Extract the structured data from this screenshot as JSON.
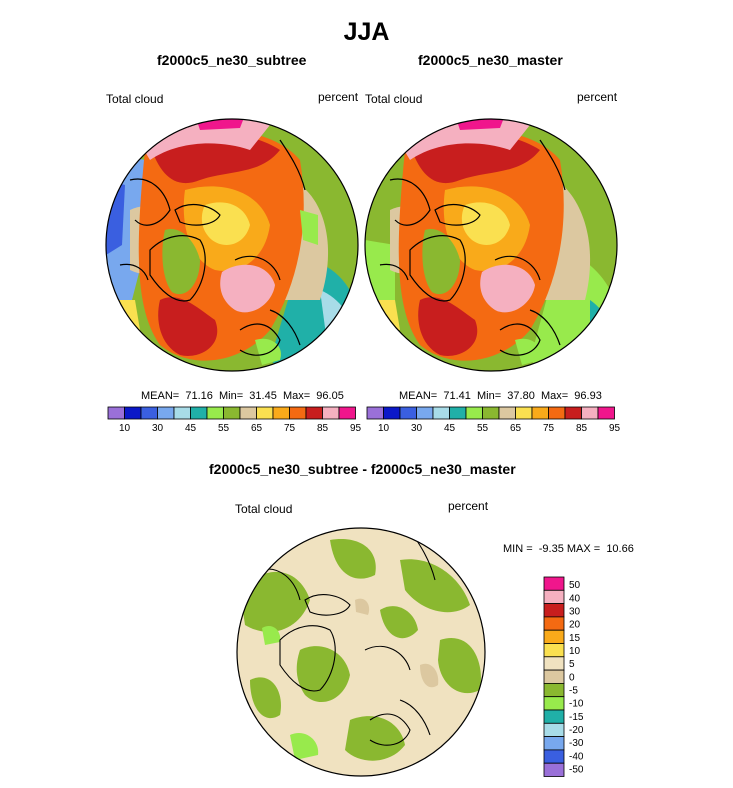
{
  "title": "JJA",
  "panels": [
    {
      "title": "f2000c5_ne30_subtree",
      "variable": "Total cloud",
      "units": "percent",
      "stats": {
        "mean_label": "MEAN=",
        "mean": "71.16",
        "min_label": "Min=",
        "min": "31.45",
        "max_label": "Max=",
        "max": "96.05"
      }
    },
    {
      "title": "f2000c5_ne30_master",
      "variable": "Total cloud",
      "units": "percent",
      "stats": {
        "mean_label": "MEAN=",
        "mean": "71.41",
        "min_label": "Min=",
        "min": "37.80",
        "max_label": "Max=",
        "max": "96.93"
      }
    }
  ],
  "diff_panel": {
    "title": "f2000c5_ne30_subtree - f2000c5_ne30_master",
    "variable": "Total cloud",
    "units": "percent",
    "minmax": "MIN =  -9.35 MAX =  10.66"
  },
  "colorbar_h": {
    "colors": [
      "#9a70d8",
      "#0b18c8",
      "#3a5fe0",
      "#78a8ee",
      "#a8dce8",
      "#20b0a8",
      "#98ea4c",
      "#8ab830",
      "#dcc8a0",
      "#fae050",
      "#f9aa1a",
      "#f46a12",
      "#c81e1e",
      "#f5b0c0",
      "#f0168c"
    ],
    "tick_labels": [
      "10",
      "30",
      "45",
      "55",
      "65",
      "75",
      "85",
      "95"
    ]
  },
  "colorbar_v": {
    "colors_top_to_bottom": [
      "#f0168c",
      "#f5b0c0",
      "#c81e1e",
      "#f46a12",
      "#f9aa1a",
      "#fae050",
      "#f0e2c0",
      "#dcc8a0",
      "#8ab830",
      "#98ea4c",
      "#20b0a8",
      "#a8dce8",
      "#78a8ee",
      "#3a5fe0",
      "#9a70d8"
    ],
    "tick_labels": [
      "50",
      "40",
      "30",
      "20",
      "15",
      "10",
      "5",
      "0",
      "-5",
      "-10",
      "-15",
      "-20",
      "-30",
      "-40",
      "-50"
    ]
  },
  "chart_data": [
    {
      "type": "heatmap",
      "title": "f2000c5_ne30_subtree",
      "projection": "north polar stereographic",
      "variable": "Total cloud",
      "units": "percent",
      "mean": 71.16,
      "min": 31.45,
      "max": 96.05,
      "levels": [
        10,
        20,
        30,
        40,
        45,
        50,
        55,
        60,
        65,
        70,
        75,
        80,
        85,
        90,
        95
      ]
    },
    {
      "type": "heatmap",
      "title": "f2000c5_ne30_master",
      "projection": "north polar stereographic",
      "variable": "Total cloud",
      "units": "percent",
      "mean": 71.41,
      "min": 37.8,
      "max": 96.93,
      "levels": [
        10,
        20,
        30,
        40,
        45,
        50,
        55,
        60,
        65,
        70,
        75,
        80,
        85,
        90,
        95
      ]
    },
    {
      "type": "heatmap",
      "title": "f2000c5_ne30_subtree - f2000c5_ne30_master",
      "projection": "north polar stereographic",
      "variable": "Total cloud",
      "units": "percent",
      "min": -9.35,
      "max": 10.66,
      "levels": [
        -50,
        -40,
        -30,
        -20,
        -15,
        -10,
        -5,
        0,
        5,
        10,
        15,
        20,
        30,
        40,
        50
      ]
    }
  ]
}
